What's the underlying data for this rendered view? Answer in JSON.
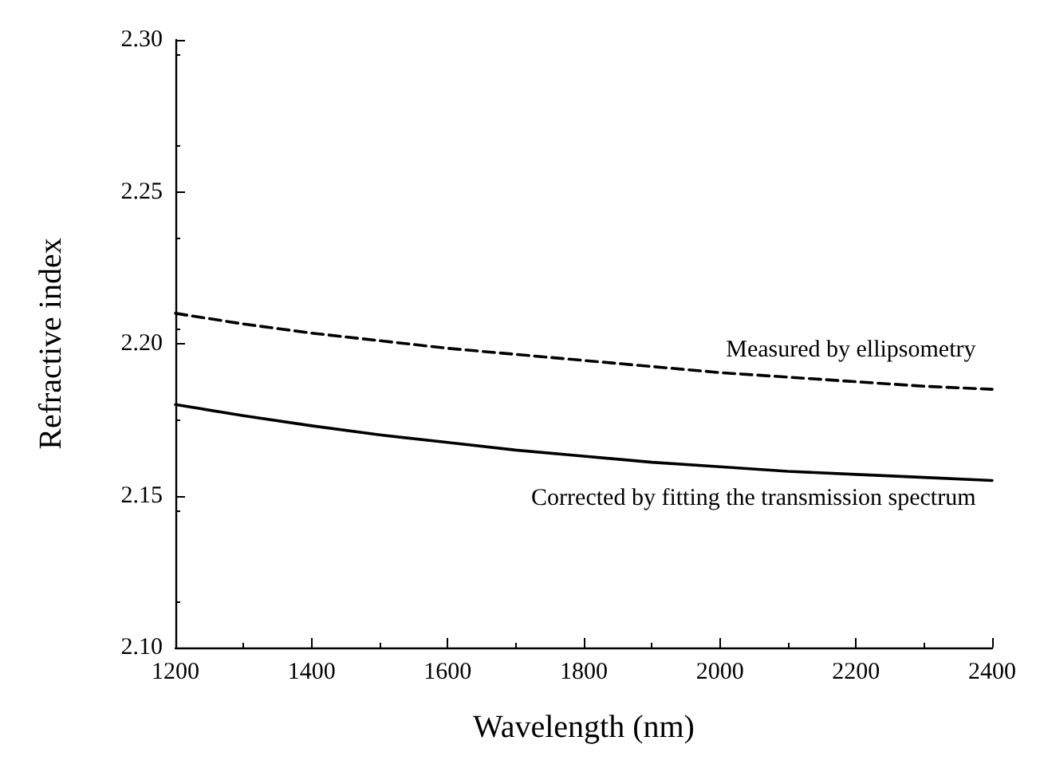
{
  "chart_data": {
    "type": "line",
    "xlabel": "Wavelength (nm)",
    "ylabel": "Refractive index",
    "x": [
      1200,
      1300,
      1400,
      1500,
      1600,
      1700,
      1800,
      1900,
      2000,
      2100,
      2200,
      2300,
      2400
    ],
    "series": [
      {
        "color": "#000000",
        "line_style": "dashed",
        "values": [
          2.21,
          2.2065,
          2.2035,
          2.201,
          2.1985,
          2.1965,
          2.1945,
          2.1925,
          2.1905,
          2.189,
          2.1875,
          2.186,
          2.185
        ]
      },
      {
        "color": "#000000",
        "line_style": "solid",
        "values": [
          2.18,
          2.1763,
          2.173,
          2.17,
          2.1675,
          2.165,
          2.163,
          2.161,
          2.1595,
          2.158,
          2.157,
          2.156,
          2.155
        ]
      }
    ],
    "xlim": [
      1200,
      2400
    ],
    "xticks": [
      1200,
      1400,
      1600,
      1800,
      2000,
      2200,
      2400
    ],
    "ylim": [
      2.1,
      2.3
    ],
    "yticks": [
      {
        "value": 2.1,
        "label": "2.10"
      },
      {
        "value": 2.15,
        "label": "2.15"
      },
      {
        "value": 2.2,
        "label": "2.20"
      },
      {
        "value": 2.25,
        "label": "2.25"
      },
      {
        "value": 2.3,
        "label": "2.30"
      }
    ],
    "annotations": [
      "Measured by ellipsometry",
      "Corrected by fitting the transmission spectrum"
    ],
    "marker": "none"
  }
}
